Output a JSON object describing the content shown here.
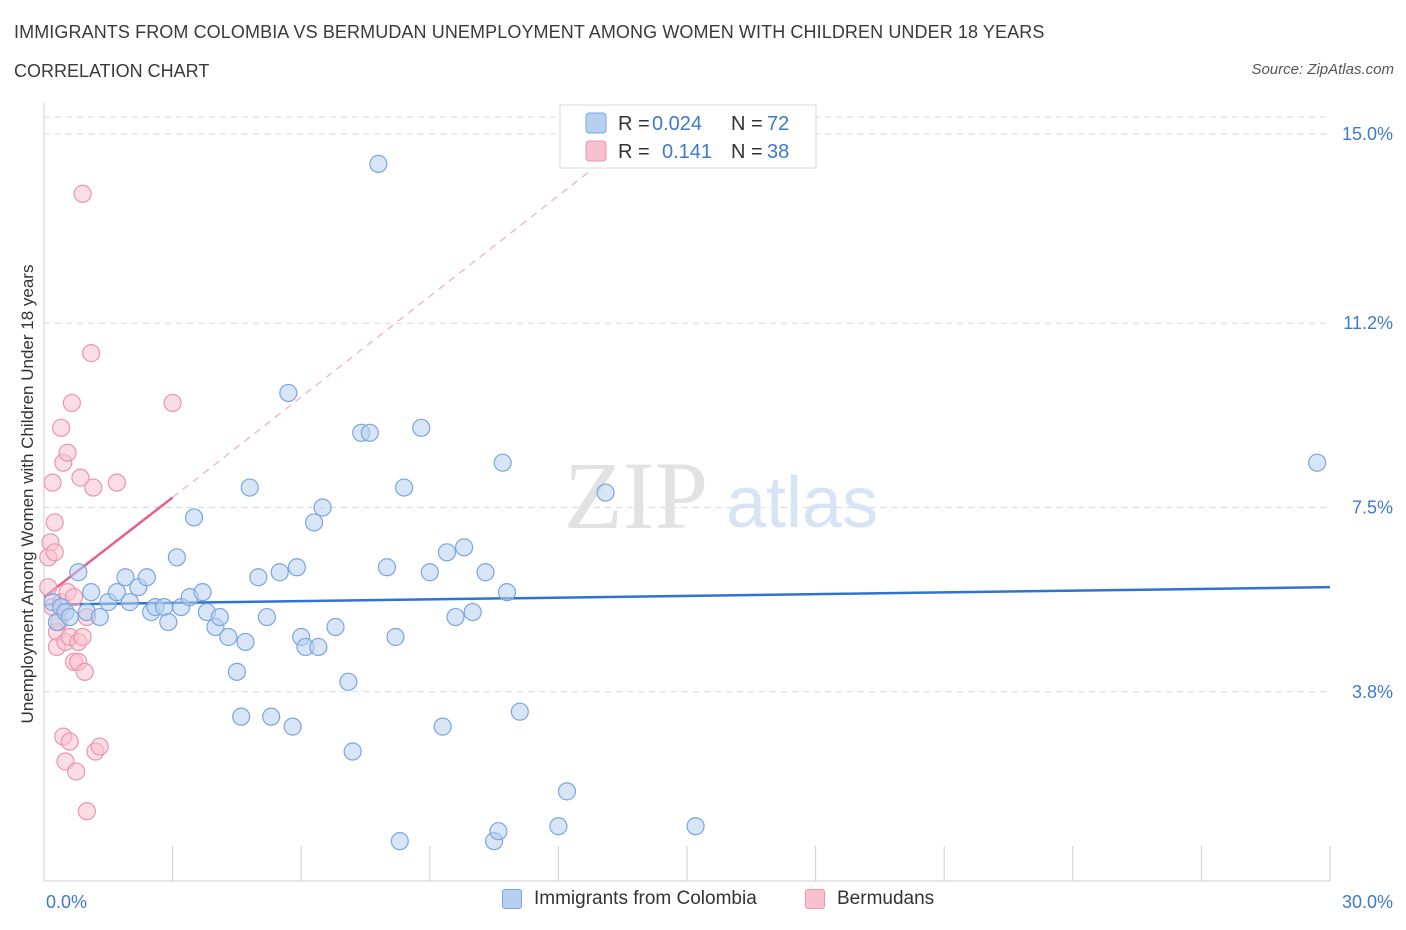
{
  "header": {
    "title": "IMMIGRANTS FROM COLOMBIA VS BERMUDAN UNEMPLOYMENT AMONG WOMEN WITH CHILDREN UNDER 18 YEARS",
    "subtitle": "CORRELATION CHART",
    "source": "Source: ZipAtlas.com"
  },
  "watermark": {
    "zip": "ZIP",
    "atlas": "atlas"
  },
  "colors": {
    "blue_fill": "#b8d0f0",
    "blue_stroke": "#7aa6de",
    "blue_line": "#2f73d4",
    "pink_fill": "#f7c1d0",
    "pink_stroke": "#ec94ae",
    "pink_line": "#e4608a",
    "grid": "#d9d9d9",
    "axis_text": "#3e7ac9"
  },
  "legend_top": {
    "rows": [
      {
        "r_label": "R = ",
        "r_value": "0.024",
        "n_label": "N = ",
        "n_value": "72",
        "series": "blue"
      },
      {
        "r_label": "R = ",
        "r_value": "0.141",
        "n_label": "N = ",
        "n_value": "38",
        "series": "pink"
      }
    ]
  },
  "legend_bottom": {
    "items": [
      {
        "label": "Immigrants from Colombia",
        "series": "blue"
      },
      {
        "label": "Bermudans",
        "series": "pink"
      }
    ]
  },
  "chart_data": {
    "type": "scatter",
    "title": "IMMIGRANTS FROM COLOMBIA VS BERMUDAN UNEMPLOYMENT AMONG WOMEN WITH CHILDREN UNDER 18 YEARS",
    "xlabel": "",
    "ylabel": "Unemployment Among Women with Children Under 18 years",
    "xlim": [
      0,
      30
    ],
    "ylim": [
      0,
      15.3
    ],
    "x_tick_labels": [
      "0.0%",
      "30.0%"
    ],
    "y_ticks": [
      3.8,
      7.5,
      11.2,
      15.0
    ],
    "y_tick_labels": [
      "3.8%",
      "7.5%",
      "11.2%",
      "15.0%"
    ],
    "series": [
      {
        "name": "Immigrants from Colombia",
        "color": "blue",
        "R": 0.024,
        "N": 72,
        "trend": {
          "x0": 0,
          "y0": 5.55,
          "x1": 30,
          "y1": 5.9
        },
        "points": [
          [
            0.2,
            5.6
          ],
          [
            0.3,
            5.2
          ],
          [
            0.4,
            5.5
          ],
          [
            0.5,
            5.4
          ],
          [
            0.6,
            5.3
          ],
          [
            0.8,
            6.2
          ],
          [
            1.0,
            5.4
          ],
          [
            1.1,
            5.8
          ],
          [
            1.3,
            5.3
          ],
          [
            1.5,
            5.6
          ],
          [
            1.7,
            5.8
          ],
          [
            1.9,
            6.1
          ],
          [
            2.0,
            5.6
          ],
          [
            2.2,
            5.9
          ],
          [
            2.4,
            6.1
          ],
          [
            2.5,
            5.4
          ],
          [
            2.6,
            5.5
          ],
          [
            2.8,
            5.5
          ],
          [
            2.9,
            5.2
          ],
          [
            3.1,
            6.5
          ],
          [
            3.2,
            5.5
          ],
          [
            3.4,
            5.7
          ],
          [
            3.5,
            7.3
          ],
          [
            3.7,
            5.8
          ],
          [
            3.8,
            5.4
          ],
          [
            4.0,
            5.1
          ],
          [
            4.1,
            5.3
          ],
          [
            4.3,
            4.9
          ],
          [
            4.5,
            4.2
          ],
          [
            4.6,
            3.3
          ],
          [
            4.7,
            4.8
          ],
          [
            4.8,
            7.9
          ],
          [
            5.0,
            6.1
          ],
          [
            5.2,
            5.3
          ],
          [
            5.3,
            3.3
          ],
          [
            5.5,
            6.2
          ],
          [
            5.7,
            9.8
          ],
          [
            5.8,
            3.1
          ],
          [
            5.9,
            6.3
          ],
          [
            6.0,
            4.9
          ],
          [
            6.1,
            4.7
          ],
          [
            6.3,
            7.2
          ],
          [
            6.4,
            4.7
          ],
          [
            6.5,
            7.5
          ],
          [
            6.8,
            5.1
          ],
          [
            7.1,
            4.0
          ],
          [
            7.2,
            2.6
          ],
          [
            7.4,
            9.0
          ],
          [
            7.6,
            9.0
          ],
          [
            7.8,
            14.4
          ],
          [
            8.0,
            6.3
          ],
          [
            8.2,
            4.9
          ],
          [
            8.3,
            0.8
          ],
          [
            8.4,
            7.9
          ],
          [
            8.8,
            9.1
          ],
          [
            9.0,
            6.2
          ],
          [
            9.3,
            3.1
          ],
          [
            9.4,
            6.6
          ],
          [
            9.6,
            5.3
          ],
          [
            9.8,
            6.7
          ],
          [
            10.0,
            5.4
          ],
          [
            10.3,
            6.2
          ],
          [
            10.5,
            0.8
          ],
          [
            10.6,
            1.0
          ],
          [
            10.7,
            8.4
          ],
          [
            10.8,
            5.8
          ],
          [
            11.1,
            3.4
          ],
          [
            12.0,
            1.1
          ],
          [
            12.2,
            1.8
          ],
          [
            13.1,
            7.8
          ],
          [
            15.2,
            1.1
          ],
          [
            29.7,
            8.4
          ]
        ]
      },
      {
        "name": "Bermudans",
        "color": "pink",
        "R": 0.141,
        "N": 38,
        "trend": {
          "x0": 0,
          "y0": 5.7,
          "x1": 3.0,
          "y1": 7.7,
          "dashed_to": {
            "x": 12.8,
            "y": 14.3
          }
        },
        "points": [
          [
            0.1,
            5.9
          ],
          [
            0.1,
            6.5
          ],
          [
            0.15,
            6.8
          ],
          [
            0.2,
            8.0
          ],
          [
            0.2,
            5.5
          ],
          [
            0.25,
            7.2
          ],
          [
            0.25,
            6.6
          ],
          [
            0.3,
            5.0
          ],
          [
            0.3,
            4.7
          ],
          [
            0.35,
            5.2
          ],
          [
            0.4,
            5.6
          ],
          [
            0.4,
            9.1
          ],
          [
            0.45,
            2.9
          ],
          [
            0.45,
            8.4
          ],
          [
            0.5,
            4.8
          ],
          [
            0.5,
            2.4
          ],
          [
            0.55,
            8.6
          ],
          [
            0.55,
            5.8
          ],
          [
            0.6,
            2.8
          ],
          [
            0.6,
            4.9
          ],
          [
            0.65,
            9.6
          ],
          [
            0.7,
            5.7
          ],
          [
            0.7,
            4.4
          ],
          [
            0.75,
            2.2
          ],
          [
            0.8,
            4.8
          ],
          [
            0.8,
            4.4
          ],
          [
            0.85,
            8.1
          ],
          [
            0.9,
            4.9
          ],
          [
            0.9,
            13.8
          ],
          [
            0.95,
            4.2
          ],
          [
            1.0,
            5.3
          ],
          [
            1.0,
            1.4
          ],
          [
            1.1,
            10.6
          ],
          [
            1.15,
            7.9
          ],
          [
            1.2,
            2.6
          ],
          [
            1.3,
            2.7
          ],
          [
            1.7,
            8.0
          ],
          [
            3.0,
            9.6
          ]
        ]
      }
    ],
    "legend_position": "top-center"
  }
}
